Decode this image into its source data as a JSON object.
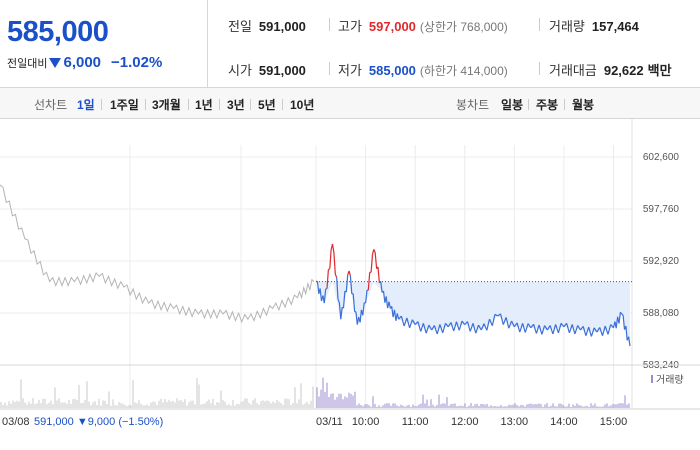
{
  "header": {
    "current_price": "585,000",
    "change_label": "전일대비",
    "change_amount": "6,000",
    "change_rate": "−1.02%",
    "stats": {
      "prev_close": {
        "label": "전일",
        "value": "591,000"
      },
      "high": {
        "label": "고가",
        "value": "597,000",
        "sub": "(상한가 768,000)"
      },
      "volume": {
        "label": "거래량",
        "value": "157,464"
      },
      "open": {
        "label": "시가",
        "value": "591,000"
      },
      "low": {
        "label": "저가",
        "value": "585,000",
        "sub": "(하한가 414,000)"
      },
      "trade_value": {
        "label": "거래대금",
        "value": "92,622",
        "unit": "백만"
      }
    }
  },
  "tabs": {
    "line_chart_label": "선차트",
    "periods": [
      "1일",
      "1주일",
      "3개월",
      "1년",
      "3년",
      "5년",
      "10년"
    ],
    "active_period": "1일",
    "candle_chart_label": "봉차트",
    "candle_periods": [
      "일봉",
      "주봉",
      "월봉"
    ]
  },
  "colors": {
    "accent_blue": "#1b50c8",
    "up_red": "#e0282d",
    "line_blue": "#3a6fd8",
    "history_gray": "#b4b4b4",
    "fill_blue": "#e4edfb",
    "volume_purple": "#9b8ed0"
  },
  "chart_data": {
    "type": "line",
    "ylim": [
      583240,
      602600
    ],
    "y_ticks": [
      "602,600",
      "597,760",
      "592,920",
      "588,080",
      "583,240"
    ],
    "x_labels": [
      "03/08",
      "03/11",
      "10:00",
      "11:00",
      "12:00",
      "13:00",
      "14:00",
      "15:00"
    ],
    "reference_price": 591000,
    "volume_legend": "거래량",
    "footer": {
      "date": "03/08",
      "price": "591,000",
      "change": "9,000",
      "rate": "(−1.50%)"
    },
    "series": [
      {
        "x": [
          "03/08 09:00",
          "03/08 09:30",
          "03/08 10:00",
          "03/08 10:30",
          "03/08 11:00",
          "03/08 11:30",
          "03/08 12:00",
          "03/08 12:30",
          "03/08 13:00",
          "03/08 13:30",
          "03/08 14:00",
          "03/08 14:30",
          "03/08 15:00",
          "03/08 15:20"
        ],
        "values": [
          600000,
          595000,
          591000,
          591000,
          591500,
          590500,
          589000,
          588500,
          588000,
          588000,
          587500,
          588500,
          589500,
          591000
        ]
      },
      {
        "x": [
          "09:00",
          "09:10",
          "09:20",
          "09:30",
          "09:40",
          "09:50",
          "10:00",
          "10:10",
          "10:20",
          "10:30",
          "10:40",
          "11:00",
          "11:20",
          "11:40",
          "12:00",
          "12:20",
          "12:40",
          "13:00",
          "13:20",
          "13:40",
          "14:00",
          "14:20",
          "14:40",
          "15:00",
          "15:10",
          "15:20"
        ],
        "values": [
          591000,
          589000,
          594500,
          587500,
          592000,
          587000,
          589000,
          594000,
          590000,
          588500,
          587500,
          587000,
          586500,
          586800,
          587000,
          586500,
          587800,
          586800,
          586700,
          586500,
          586800,
          586500,
          586300,
          586700,
          588000,
          585000
        ]
      }
    ]
  }
}
